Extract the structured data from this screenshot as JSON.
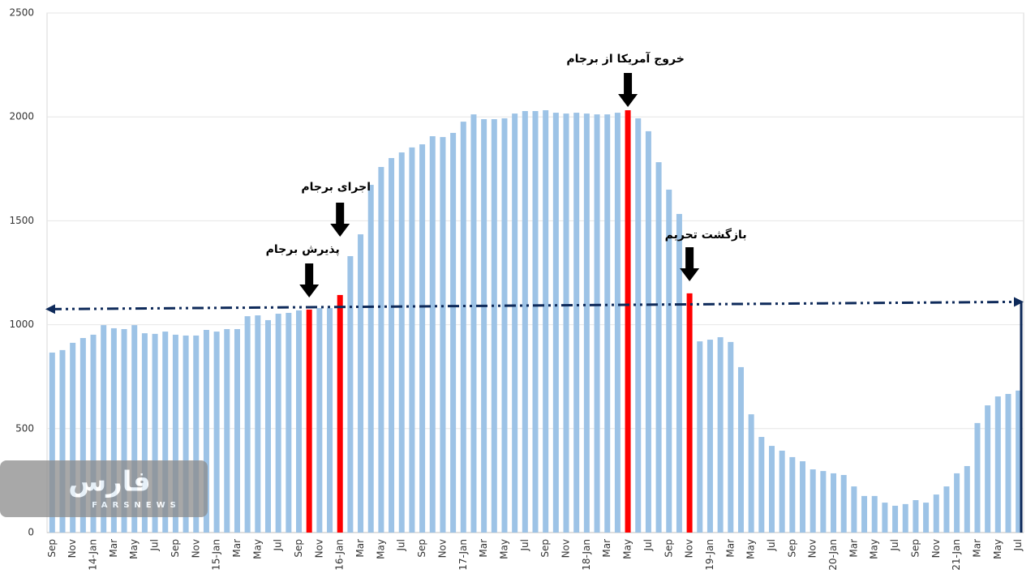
{
  "chart_data": {
    "type": "bar",
    "categories": [
      "Sep",
      null,
      "Nov",
      null,
      "14-Jan",
      null,
      "Mar",
      null,
      "May",
      null,
      "Jul",
      null,
      "Sep",
      null,
      "Nov",
      null,
      "15-Jan",
      null,
      "Mar",
      null,
      "May",
      null,
      "Jul",
      null,
      "Sep",
      null,
      "Nov",
      null,
      "16-Jan",
      null,
      "Mar",
      null,
      "May",
      null,
      "Jul",
      null,
      "Sep",
      null,
      "Nov",
      null,
      "17-Jan",
      null,
      "Mar",
      null,
      "May",
      null,
      "Jul",
      null,
      "Sep",
      null,
      "Nov",
      null,
      "18-Jan",
      null,
      "Mar",
      null,
      "May",
      null,
      "Jul",
      null,
      "Sep",
      null,
      "Nov",
      null,
      "19-Jan",
      null,
      "Mar",
      null,
      "May",
      null,
      "Jul",
      null,
      "Sep",
      null,
      "Nov",
      null,
      "20-Jan",
      null,
      "Mar",
      null,
      "May",
      null,
      "Jul",
      null,
      "Sep",
      null,
      "Nov",
      null,
      "21-Jan",
      null,
      "Mar",
      null,
      "May",
      null,
      "Jul"
    ],
    "values": [
      866,
      878,
      913,
      936,
      952,
      998,
      983,
      979,
      998,
      959,
      956,
      967,
      952,
      948,
      948,
      975,
      967,
      979,
      979,
      1041,
      1045,
      1022,
      1053,
      1057,
      1069,
      1073,
      1080,
      1080,
      1143,
      1330,
      1435,
      1673,
      1759,
      1802,
      1829,
      1853,
      1868,
      1907,
      1903,
      1923,
      1977,
      2012,
      1989,
      1989,
      1993,
      2016,
      2028,
      2028,
      2032,
      2020,
      2016,
      2020,
      2016,
      2012,
      2012,
      2020,
      2032,
      1993,
      1931,
      1782,
      1650,
      1533,
      1151,
      920,
      928,
      940,
      917,
      796,
      569,
      460,
      417,
      394,
      363,
      343,
      304,
      296,
      285,
      277,
      222,
      176,
      176,
      144,
      129,
      137,
      156,
      144,
      183,
      222,
      285,
      320,
      527,
      612,
      655,
      667,
      683
    ],
    "color": "#9dc3e6",
    "highlight": [
      25,
      28,
      56,
      62
    ],
    "highlight_color": "#ff0000",
    "ylim": [
      0,
      2500
    ],
    "yticks": [
      0,
      500,
      1000,
      1500,
      2000,
      2500
    ],
    "grid": true,
    "trend": {
      "values": [
        1075,
        1110
      ],
      "color": "#0e2a5a"
    },
    "annotations": [
      {
        "text": "پذیرش برجام"
      },
      {
        "text": "اجرای برجام"
      },
      {
        "text": "خروج آمریکا از برجام"
      },
      {
        "text": "بازگشت تحریم"
      }
    ],
    "watermark": {
      "title": "فارس",
      "subtitle": "FARSNEWS"
    }
  }
}
